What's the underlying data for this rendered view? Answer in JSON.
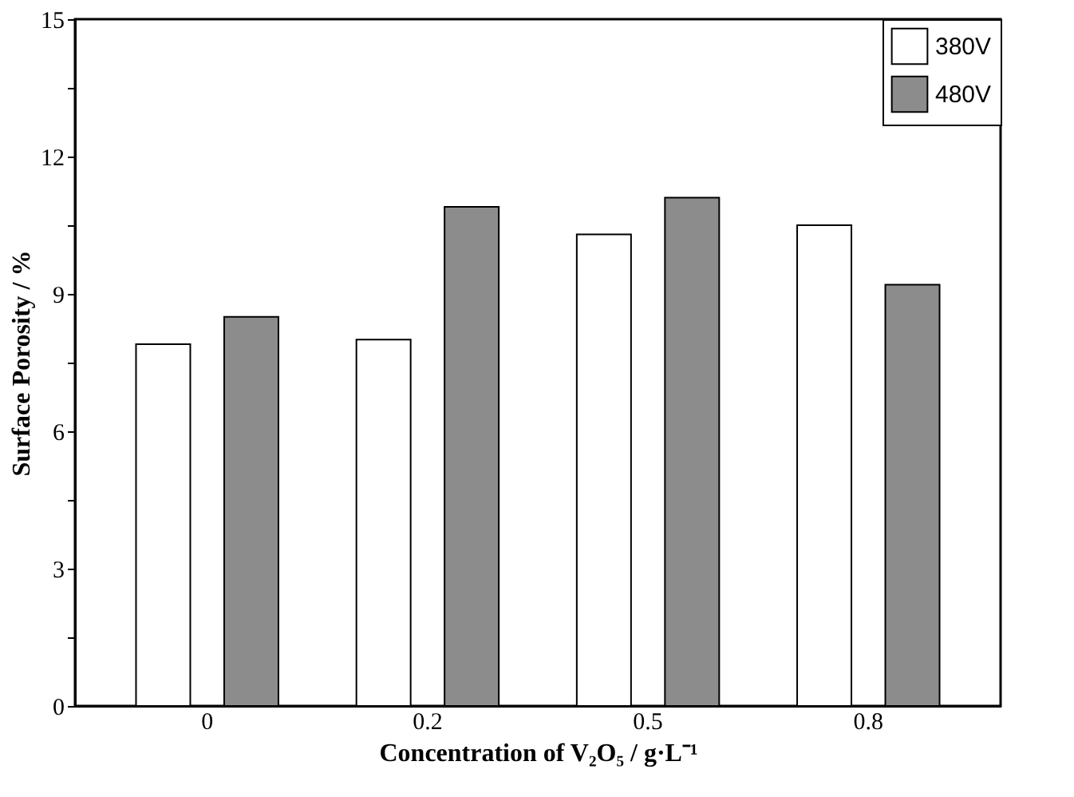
{
  "chart_data": {
    "type": "bar",
    "xlabel": "Concentration of V₂O₅ / g·L⁻¹",
    "ylabel": "Surface Porosity / %",
    "categories": [
      "0",
      "0.2",
      "0.5",
      "0.8"
    ],
    "series": [
      {
        "name": "380V",
        "color": "#ffffff",
        "values": [
          7.9,
          8.0,
          10.3,
          10.5
        ]
      },
      {
        "name": "480V",
        "color": "#8c8c8c",
        "values": [
          8.5,
          10.9,
          11.1,
          9.2
        ]
      }
    ],
    "ylim": [
      0,
      15
    ],
    "yticks": [
      0,
      {
        "value": 1.5,
        "label": null
      },
      3,
      {
        "value": 4.5,
        "label": null
      },
      6,
      {
        "value": 7.5,
        "label": null
      },
      9,
      {
        "value": 10.5,
        "label": null
      },
      12,
      {
        "value": 13.5,
        "label": null
      },
      15
    ],
    "legend": "top right",
    "grid": false
  }
}
